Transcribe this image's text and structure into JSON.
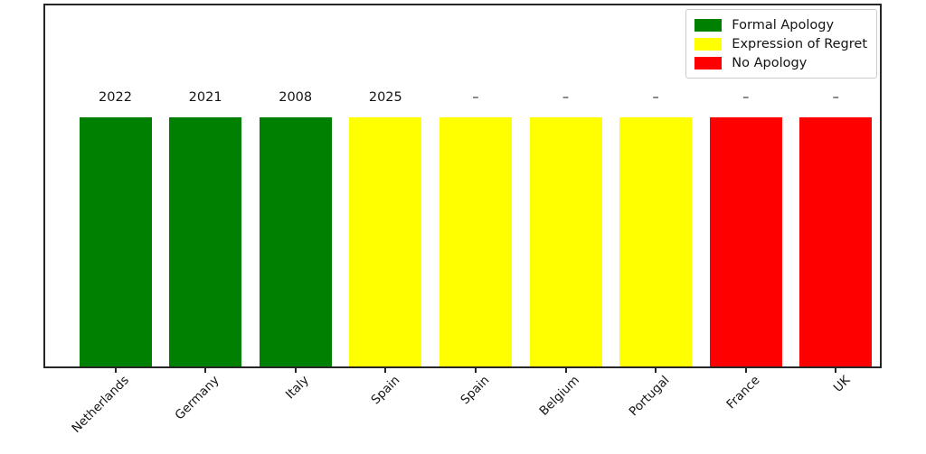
{
  "chart_data": {
    "type": "bar",
    "title": "",
    "xlabel": "",
    "ylabel": "",
    "categories": [
      "Netherlands",
      "Germany",
      "Italy",
      "Spain",
      "Spain",
      "Belgium",
      "Portugal",
      "France",
      "UK"
    ],
    "values": [
      1,
      1,
      1,
      1,
      1,
      1,
      1,
      1,
      1
    ],
    "bar_labels": [
      "2022",
      "2021",
      "2008",
      "2025",
      "–",
      "–",
      "–",
      "–",
      "–"
    ],
    "bar_colors": [
      "#008000",
      "#008000",
      "#008000",
      "#ffff00",
      "#ffff00",
      "#ffff00",
      "#ffff00",
      "#ff0000",
      "#ff0000"
    ],
    "bar_status": [
      "Formal Apology",
      "Formal Apology",
      "Formal Apology",
      "Expression of Regret",
      "Expression of Regret",
      "Expression of Regret",
      "Expression of Regret",
      "No Apology",
      "No Apology"
    ],
    "ylim": [
      0,
      1.45
    ],
    "grid": false,
    "legend": {
      "position": "upper-right",
      "entries": [
        {
          "label": "Formal Apology",
          "color": "#008000"
        },
        {
          "label": "Expression of Regret",
          "color": "#ffff00"
        },
        {
          "label": "No Apology",
          "color": "#ff0000"
        }
      ]
    }
  }
}
